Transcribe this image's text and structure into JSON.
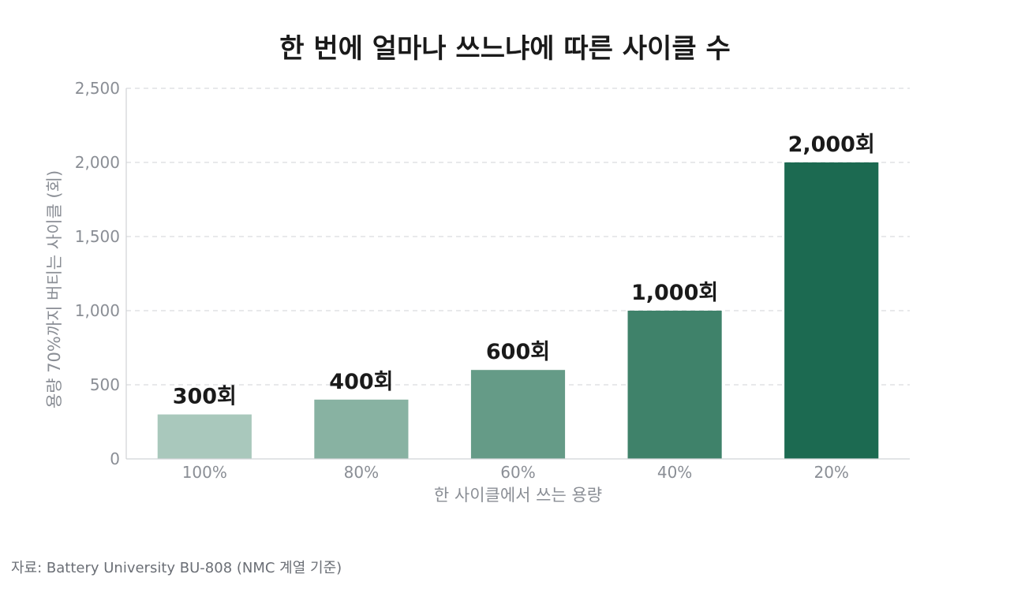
{
  "chart_data": {
    "type": "bar",
    "title": "한 번에 얼마나 쓰느냐에 따른 사이클 수",
    "xlabel": "한 사이클에서 쓰는 용량",
    "ylabel": "용량 70%까지 버티는 사이클 (회)",
    "categories": [
      "100%",
      "80%",
      "60%",
      "40%",
      "20%"
    ],
    "values": [
      300,
      400,
      600,
      1000,
      2000
    ],
    "value_labels": [
      "300회",
      "400회",
      "600회",
      "1,000회",
      "2,000회"
    ],
    "ylim": [
      0,
      2500
    ],
    "yticks": [
      0,
      500,
      1000,
      1500,
      2000,
      2500
    ],
    "ytick_labels": [
      "0",
      "500",
      "1,000",
      "1,500",
      "2,000",
      "2,500"
    ],
    "grid": true,
    "colors": [
      "#a9c8bc",
      "#88b2a2",
      "#659b87",
      "#3f826a",
      "#1c6a51"
    ]
  },
  "source_note": "자료: Battery University BU-808 (NMC 계열 기준)"
}
